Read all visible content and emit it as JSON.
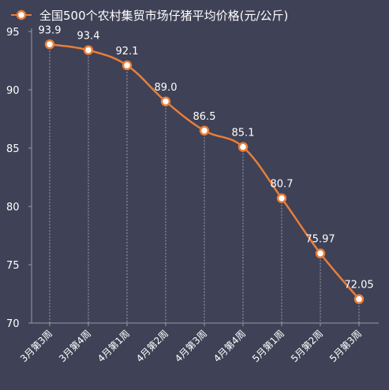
{
  "chart_data": {
    "type": "line",
    "title": "",
    "xlabel": "",
    "ylabel": "",
    "legend": {
      "position": "top",
      "entries": [
        "全国500个农村集贸市场仔猪平均价格(元/公斤)"
      ]
    },
    "categories": [
      "3月第3周",
      "3月第4周",
      "4月第1周",
      "4月第2周",
      "4月第3周",
      "4月第4周",
      "5月第1周",
      "5月第2周",
      "5月第3周"
    ],
    "series": [
      {
        "name": "全国500个农村集贸市场仔猪平均价格(元/公斤)",
        "values": [
          93.9,
          93.4,
          92.1,
          89.0,
          86.5,
          85.1,
          80.7,
          75.97,
          72.05
        ],
        "labels": [
          "93.9",
          "93.4",
          "92.1",
          "89.0",
          "86.5",
          "85.1",
          "80.7",
          "75.97",
          "72.05"
        ]
      }
    ],
    "ylim": [
      70,
      95
    ],
    "yticks": [
      70,
      75,
      80,
      85,
      90,
      95
    ],
    "grid": {
      "vertical_dashed": true,
      "horizontal": false
    },
    "colors": {
      "line": "#e67e3a",
      "marker_fill": "#ffffff",
      "background": "#3f4156"
    }
  }
}
